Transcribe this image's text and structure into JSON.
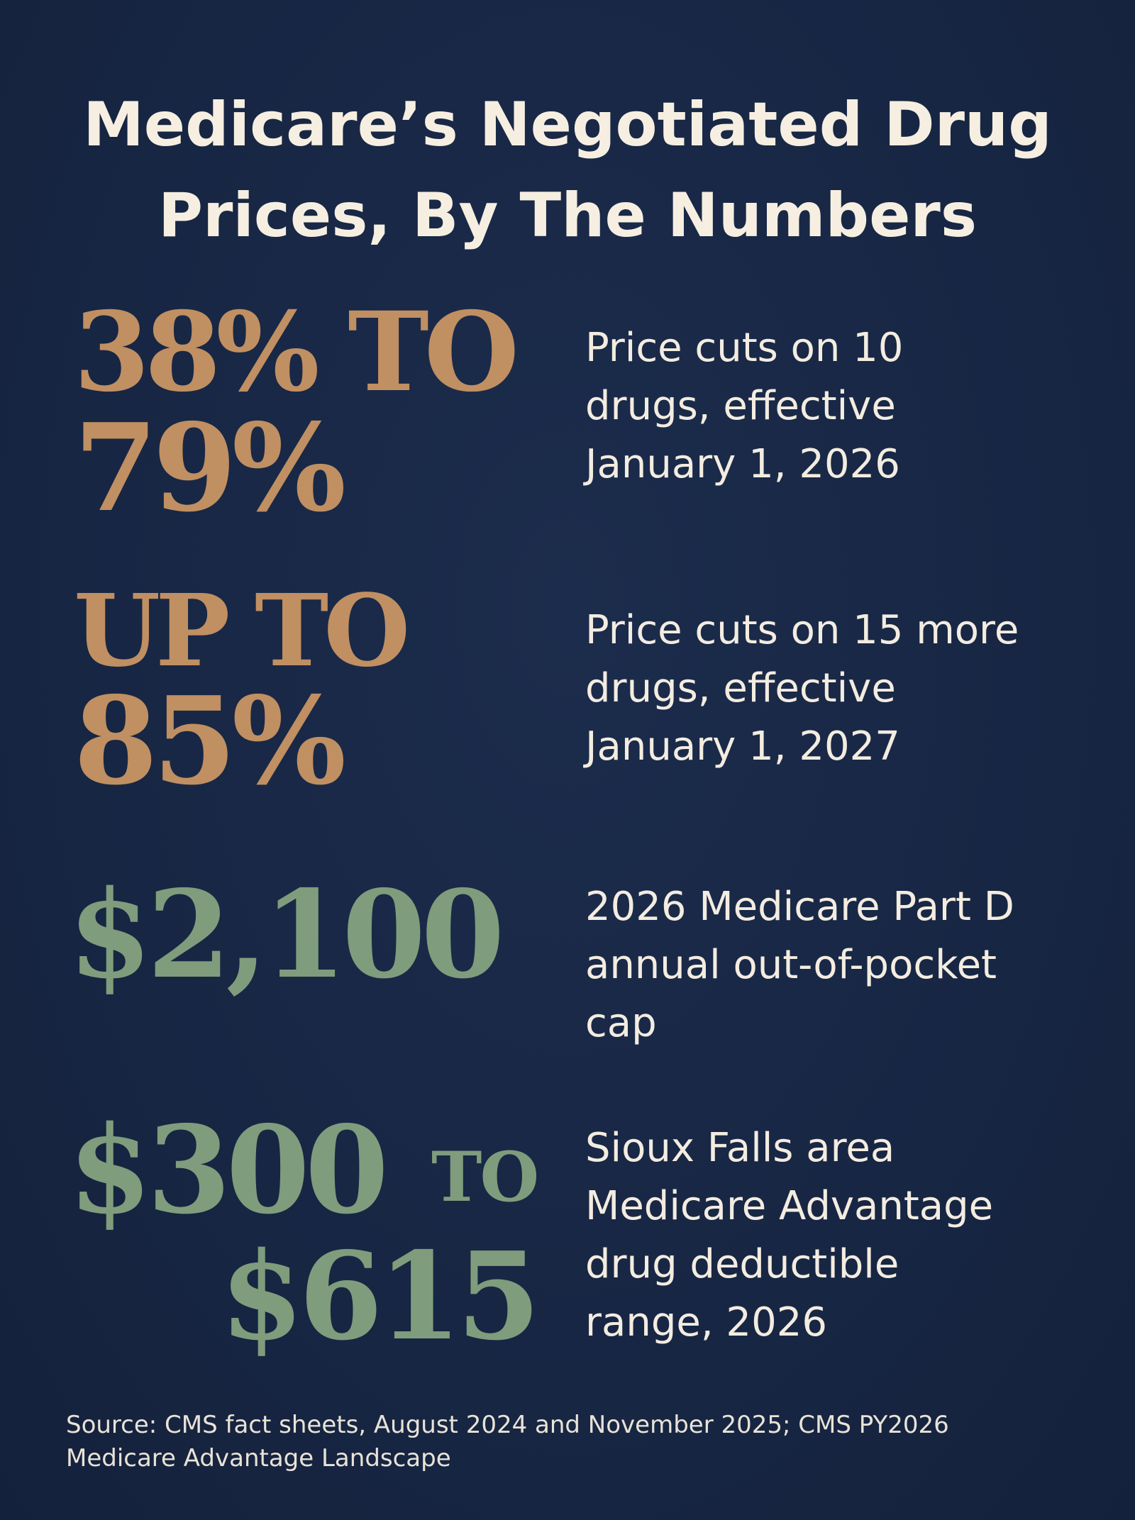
{
  "title": {
    "line1": "Medicare’s Negotiated Drug",
    "line2": "Prices, By The Numbers"
  },
  "stats": [
    {
      "big_line1": "38% TO",
      "big_line2": "79%",
      "desc_lines": [
        "Price cuts on 10",
        "drugs, effective",
        "January 1, 2026"
      ]
    },
    {
      "big_line1": "UP TO",
      "big_line2": "85%",
      "desc_lines": [
        "Price cuts on 15 more",
        "drugs, effective",
        "January 1, 2027"
      ]
    },
    {
      "big_line1": "$2,100",
      "desc_lines": [
        "2026 Medicare Part D",
        "annual out-of-pocket",
        "cap"
      ]
    },
    {
      "big_value_a": "$300",
      "big_connector": "TO",
      "big_value_b": "$615",
      "desc_lines": [
        "Sioux Falls area",
        "Medicare Advantage",
        "drug deductible",
        "range, 2026"
      ]
    }
  ],
  "source": {
    "line1": "Source: CMS fact sheets, August 2024 and November 2025; CMS PY2026",
    "line2": "Medicare Advantage Landscape"
  },
  "colors": {
    "background": "#172643",
    "gold": "#c08f62",
    "sage": "#7f9c7c",
    "text": "#f3ece0"
  }
}
